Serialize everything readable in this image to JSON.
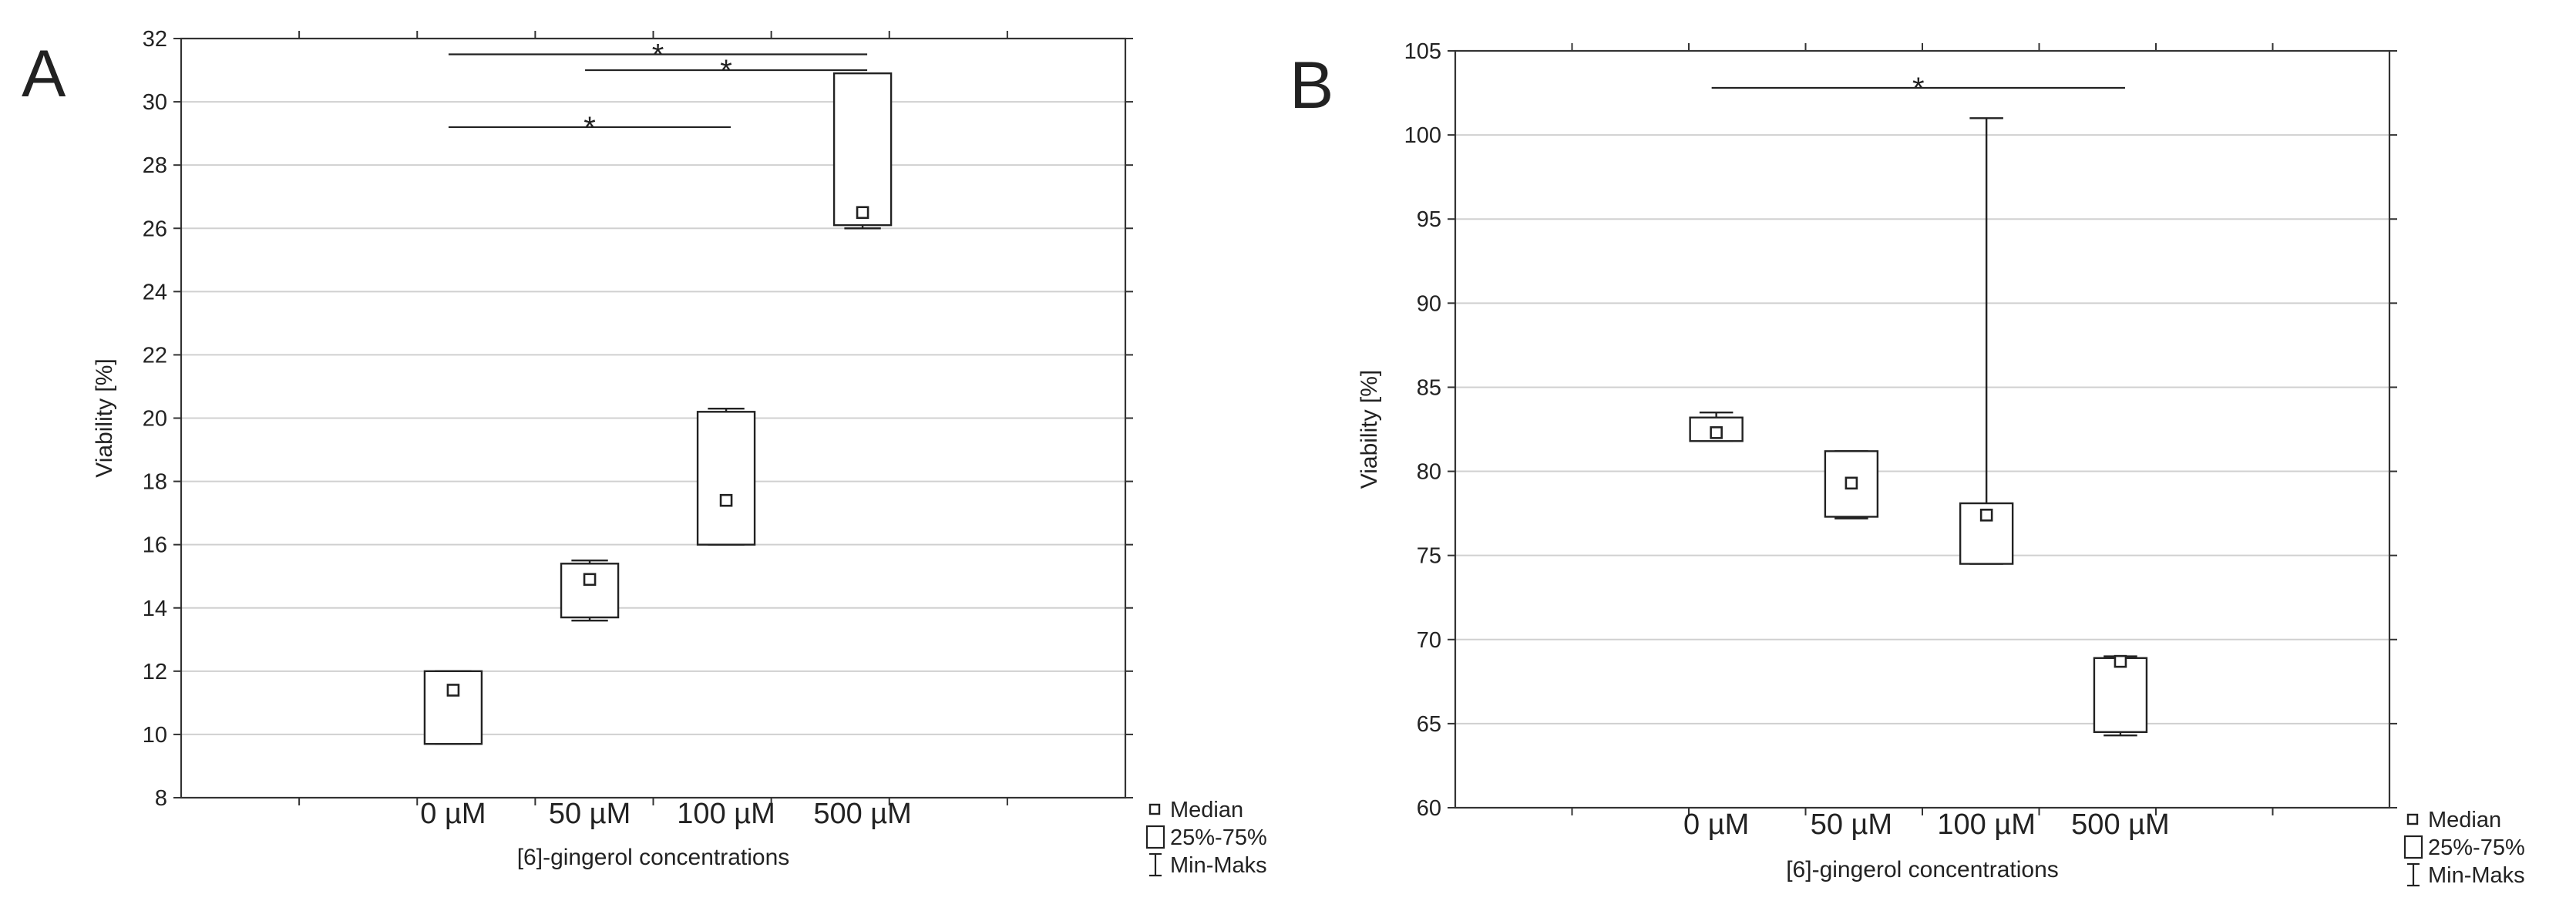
{
  "chart_data": [
    {
      "panel_label": "A",
      "type": "box",
      "xlabel": "[6]-gingerol concentrations",
      "ylabel": "Viability [%]",
      "ylim": [
        8,
        32
      ],
      "yticks": [
        8,
        10,
        12,
        14,
        16,
        18,
        20,
        22,
        24,
        26,
        28,
        30,
        32
      ],
      "grid": true,
      "categories": [
        "0 µM",
        "50 µM",
        "100 µM",
        "500 µM"
      ],
      "boxes": [
        {
          "category": "0 µM",
          "min": 9.7,
          "q1": 9.7,
          "median": 11.4,
          "q3": 12.0,
          "max": 12.0
        },
        {
          "category": "50 µM",
          "min": 13.6,
          "q1": 13.7,
          "median": 14.9,
          "q3": 15.4,
          "max": 15.5
        },
        {
          "category": "100 µM",
          "min": 16.0,
          "q1": 16.0,
          "median": 17.4,
          "q3": 20.2,
          "max": 20.3
        },
        {
          "category": "500 µM",
          "min": 26.0,
          "q1": 26.1,
          "median": 26.5,
          "q3": 30.9,
          "max": 30.9
        }
      ],
      "significance": [
        {
          "from": "0 µM",
          "to": "100 µM",
          "y": 29.2,
          "label": "*"
        },
        {
          "from": "50 µM",
          "to": "500 µM",
          "y": 31.0,
          "label": "*"
        },
        {
          "from": "0 µM",
          "to": "500 µM",
          "y": 31.5,
          "label": "*"
        }
      ],
      "legend": {
        "placement": "bottom-right",
        "items": [
          {
            "symbol": "median",
            "label": "Median"
          },
          {
            "symbol": "box",
            "label": "25%-75%"
          },
          {
            "symbol": "whisker",
            "label": "Min-Maks"
          }
        ]
      }
    },
    {
      "panel_label": "B",
      "type": "box",
      "xlabel": "[6]-gingerol concentrations",
      "ylabel": "Viability [%]",
      "ylim": [
        60,
        105
      ],
      "yticks": [
        60,
        65,
        70,
        75,
        80,
        85,
        90,
        95,
        100,
        105
      ],
      "grid": true,
      "categories": [
        "0 µM",
        "50 µM",
        "100 µM",
        "500 µM"
      ],
      "boxes": [
        {
          "category": "0 µM",
          "min": 81.8,
          "q1": 81.8,
          "median": 82.3,
          "q3": 83.2,
          "max": 83.5
        },
        {
          "category": "50 µM",
          "min": 77.2,
          "q1": 77.3,
          "median": 79.3,
          "q3": 81.2,
          "max": 81.2
        },
        {
          "category": "100 µM",
          "min": 74.5,
          "q1": 74.5,
          "median": 77.4,
          "q3": 78.1,
          "max": 101.0
        },
        {
          "category": "500 µM",
          "min": 64.3,
          "q1": 64.5,
          "median": 68.7,
          "q3": 68.9,
          "max": 69.0
        }
      ],
      "significance": [
        {
          "from": "0 µM",
          "to": "500 µM",
          "y": 102.8,
          "label": "*"
        }
      ],
      "legend": {
        "placement": "bottom-right",
        "items": [
          {
            "symbol": "median",
            "label": "Median"
          },
          {
            "symbol": "box",
            "label": "25%-75%"
          },
          {
            "symbol": "whisker",
            "label": "Min-Maks"
          }
        ]
      }
    }
  ]
}
